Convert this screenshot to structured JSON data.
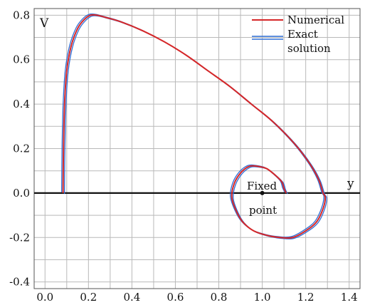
{
  "chart_data": {
    "type": "line",
    "title": "",
    "xlabel": "y",
    "ylabel": "V",
    "xlim": [
      -0.05,
      1.45
    ],
    "ylim": [
      -0.43,
      0.83
    ],
    "grid": true,
    "legend_placement": "top-right",
    "x_ticks": [
      "0.0",
      "0.2",
      "0.4",
      "0.6",
      "0.8",
      "1.0",
      "1.2",
      "1.4"
    ],
    "y_ticks": [
      "0.8",
      "0.6",
      "0.4",
      "0.2",
      "0.0",
      "-0.2",
      "-0.4"
    ],
    "x_tick_values": [
      0.0,
      0.2,
      0.4,
      0.6,
      0.8,
      1.0,
      1.2,
      1.4
    ],
    "y_tick_values": [
      0.8,
      0.6,
      0.4,
      0.2,
      0.0,
      -0.2,
      -0.4
    ],
    "legend": {
      "numerical": "Numerical",
      "exact_line1": "Exact",
      "exact_line2": "solution"
    },
    "annotation": {
      "line1": "Fixed",
      "line2": "point",
      "x": 1.0,
      "y": 0.0
    },
    "series": [
      {
        "name": "Numerical",
        "color": "#d62728",
        "x": [
          0.083,
          0.085,
          0.09,
          0.1,
          0.12,
          0.15,
          0.18,
          0.21,
          0.24,
          0.28,
          0.35,
          0.45,
          0.55,
          0.65,
          0.75,
          0.85,
          0.95,
          1.05,
          1.15,
          1.22,
          1.26,
          1.28,
          1.29,
          1.28,
          1.25,
          1.2,
          1.14,
          1.08,
          1.02,
          0.96,
          0.91,
          0.88,
          0.86,
          0.87,
          0.9,
          0.94,
          0.98,
          1.02,
          1.06,
          1.09,
          1.1,
          1.11
        ],
        "y": [
          0.0,
          0.2,
          0.4,
          0.55,
          0.66,
          0.74,
          0.78,
          0.8,
          0.8,
          0.79,
          0.77,
          0.73,
          0.68,
          0.62,
          0.55,
          0.48,
          0.4,
          0.32,
          0.22,
          0.13,
          0.06,
          0.0,
          -0.02,
          -0.07,
          -0.13,
          -0.17,
          -0.2,
          -0.2,
          -0.19,
          -0.17,
          -0.13,
          -0.08,
          -0.02,
          0.04,
          0.09,
          0.12,
          0.12,
          0.11,
          0.08,
          0.05,
          0.02,
          0.0
        ]
      },
      {
        "name": "Exact solution",
        "color": "#2f6fd6",
        "x": [
          0.083,
          0.085,
          0.09,
          0.1,
          0.12,
          0.15,
          0.18,
          0.21,
          0.24,
          0.28,
          0.35,
          0.45,
          0.55,
          0.65,
          0.75,
          0.85,
          0.95,
          1.05,
          1.15,
          1.22,
          1.26,
          1.28,
          1.29,
          1.28,
          1.25,
          1.2,
          1.14,
          1.08,
          1.02,
          0.96,
          0.91,
          0.88,
          0.86,
          0.87,
          0.9,
          0.94,
          0.98,
          1.02,
          1.06,
          1.09,
          1.1,
          1.11
        ],
        "y": [
          0.0,
          0.2,
          0.4,
          0.55,
          0.66,
          0.74,
          0.78,
          0.8,
          0.8,
          0.79,
          0.77,
          0.73,
          0.68,
          0.62,
          0.55,
          0.48,
          0.4,
          0.32,
          0.22,
          0.13,
          0.06,
          0.0,
          -0.02,
          -0.07,
          -0.13,
          -0.17,
          -0.2,
          -0.2,
          -0.19,
          -0.17,
          -0.13,
          -0.08,
          -0.02,
          0.04,
          0.09,
          0.12,
          0.12,
          0.11,
          0.08,
          0.05,
          0.02,
          0.0
        ]
      }
    ]
  }
}
